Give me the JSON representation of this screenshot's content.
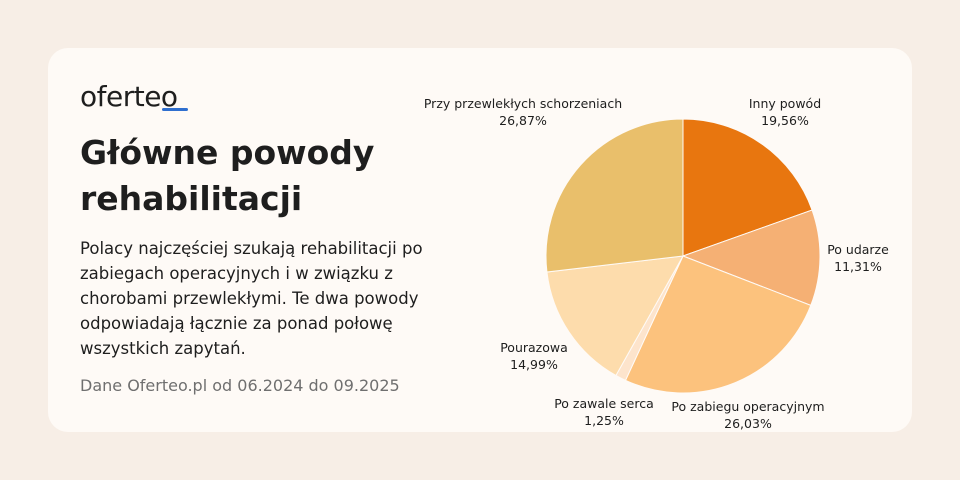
{
  "logo": {
    "text": "oferteo"
  },
  "title": "Główne powody rehabilitacji",
  "description": "Polacy najczęściej szukają rehabilitacji po zabiegach operacyjnych i w związku z chorobami przewlekłymi. Te dwa powody odpowiadają łącznie za ponad połowę wszystkich zapytań.",
  "source": "Dane Oferteo.pl od 06.2024 do 09.2025",
  "colors": {
    "background": "#f7eee6",
    "card": "#fefaf6",
    "logo_accent": "#2f6fcf"
  },
  "chart_data": {
    "type": "pie",
    "slices": [
      {
        "label": "Inny powód",
        "value": 19.56,
        "value_label": "19,56%",
        "color": "#e8760f"
      },
      {
        "label": "Po udarze",
        "value": 11.31,
        "value_label": "11,31%",
        "color": "#f5b074"
      },
      {
        "label": "Po zabiegu operacyjnym",
        "value": 26.03,
        "value_label": "26,03%",
        "color": "#fcc27d"
      },
      {
        "label": "Po zawale serca",
        "value": 1.25,
        "value_label": "1,25%",
        "color": "#fde4cc"
      },
      {
        "label": "Pourazowa",
        "value": 14.99,
        "value_label": "14,99%",
        "color": "#fddcac"
      },
      {
        "label": "Przy przewlekłych schorzeniach",
        "value": 26.87,
        "value_label": "26,87%",
        "color": "#e9bf6b"
      }
    ]
  }
}
